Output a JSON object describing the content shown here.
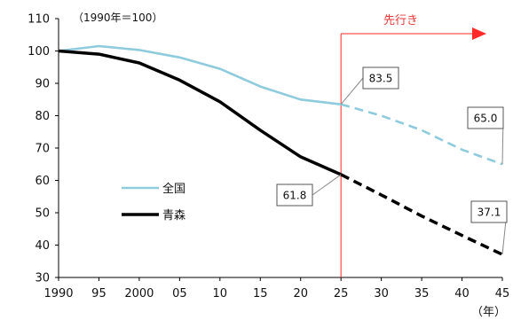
{
  "chart_data": {
    "type": "line",
    "title": "",
    "note": "（1990年＝100）",
    "x_unit": "（年）",
    "x": [
      1990,
      1995,
      2000,
      2005,
      2010,
      2015,
      2020,
      2025,
      2030,
      2035,
      2040,
      2045
    ],
    "x_tick_labels": [
      "1990",
      "95",
      "2000",
      "05",
      "10",
      "15",
      "20",
      "25",
      "30",
      "35",
      "40",
      "45"
    ],
    "y_ticks": [
      30,
      40,
      50,
      60,
      70,
      80,
      90,
      100,
      110
    ],
    "ylim": [
      30,
      110
    ],
    "grid": false,
    "forecast_start": 2025,
    "forecast_label": "先行き",
    "forecast_color": "#ff2a2a",
    "series": [
      {
        "name": "全国",
        "color": "#8ecbdd",
        "values": [
          100.0,
          101.5,
          100.3,
          98.0,
          94.5,
          89.0,
          85.0,
          83.5,
          80.0,
          75.5,
          69.5,
          65.0
        ]
      },
      {
        "name": "青森",
        "color": "#000000",
        "values": [
          100.0,
          99.0,
          96.3,
          91.0,
          84.3,
          75.5,
          67.3,
          61.8,
          55.5,
          49.0,
          43.0,
          37.1
        ]
      }
    ],
    "annotations": [
      {
        "text": "83.5",
        "x": 2025,
        "series": "全国"
      },
      {
        "text": "65.0",
        "x": 2045,
        "series": "全国"
      },
      {
        "text": "61.8",
        "x": 2025,
        "series": "青森"
      },
      {
        "text": "37.1",
        "x": 2045,
        "series": "青森"
      }
    ],
    "legend_placement": "left-middle"
  }
}
